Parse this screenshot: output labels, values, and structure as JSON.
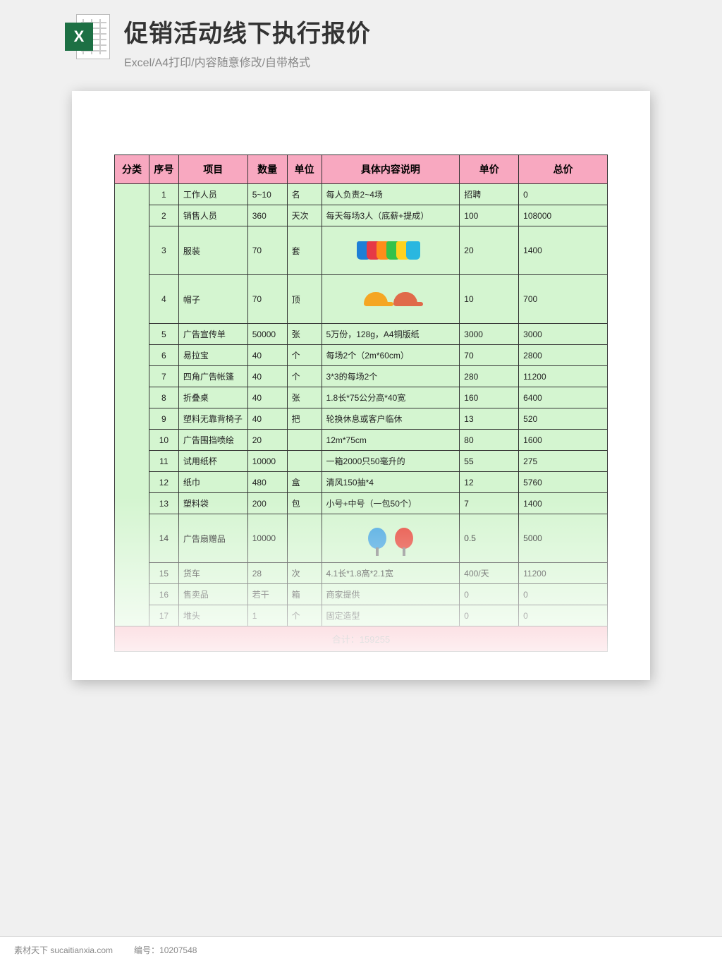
{
  "header": {
    "icon_letter": "X",
    "title": "促销活动线下执行报价",
    "subtitle": "Excel/A4打印/内容随意修改/自带格式"
  },
  "table": {
    "columns": [
      "分类",
      "序号",
      "项目",
      "数量",
      "单位",
      "具体内容说明",
      "单价",
      "总价"
    ],
    "col_widths_pct": [
      7,
      6,
      14,
      8,
      7,
      28,
      12,
      18
    ],
    "header_bg": "#f8a8c0",
    "body_bg": "#d4f5d0",
    "border_color": "#333333",
    "rows": [
      {
        "seq": "1",
        "item": "工作人员",
        "qty": "5~10",
        "unit": "名",
        "desc": "每人负责2~4场",
        "price": "招聘",
        "total": "0",
        "tall": false
      },
      {
        "seq": "2",
        "item": "销售人员",
        "qty": "360",
        "unit": "天次",
        "desc": "每天每场3人（底薪+提成）",
        "price": "100",
        "total": "108000",
        "tall": false
      },
      {
        "seq": "3",
        "item": "服装",
        "qty": "70",
        "unit": "套",
        "desc": "",
        "price": "20",
        "total": "1400",
        "tall": true,
        "illus": "shirts"
      },
      {
        "seq": "4",
        "item": "帽子",
        "qty": "70",
        "unit": "顶",
        "desc": "",
        "price": "10",
        "total": "700",
        "tall": true,
        "illus": "caps"
      },
      {
        "seq": "5",
        "item": "广告宣传单",
        "qty": "50000",
        "unit": "张",
        "desc": "5万份，128g，A4铜版纸",
        "price": "3000",
        "total": "3000",
        "tall": false
      },
      {
        "seq": "6",
        "item": "易拉宝",
        "qty": "40",
        "unit": "个",
        "desc": "每场2个（2m*60cm）",
        "price": "70",
        "total": "2800",
        "tall": false
      },
      {
        "seq": "7",
        "item": "四角广告帐篷",
        "qty": "40",
        "unit": "个",
        "desc": "3*3的每场2个",
        "price": "280",
        "total": "11200",
        "tall": false
      },
      {
        "seq": "8",
        "item": "折叠桌",
        "qty": "40",
        "unit": "张",
        "desc": "1.8长*75公分高*40宽",
        "price": "160",
        "total": "6400",
        "tall": false
      },
      {
        "seq": "9",
        "item": "塑料无靠背椅子",
        "qty": "40",
        "unit": "把",
        "desc": "轮换休息或客户临休",
        "price": "13",
        "total": "520",
        "tall": false
      },
      {
        "seq": "10",
        "item": "广告围挡喷绘",
        "qty": "20",
        "unit": "",
        "desc": "12m*75cm",
        "price": "80",
        "total": "1600",
        "tall": false
      },
      {
        "seq": "11",
        "item": "试用纸杯",
        "qty": "10000",
        "unit": "",
        "desc": "一箱2000只50毫升的",
        "price": "55",
        "total": "275",
        "tall": false
      },
      {
        "seq": "12",
        "item": "纸巾",
        "qty": "480",
        "unit": "盒",
        "desc": "清风150抽*4",
        "price": "12",
        "total": "5760",
        "tall": false
      },
      {
        "seq": "13",
        "item": "塑料袋",
        "qty": "200",
        "unit": "包",
        "desc": "小号+中号（一包50个）",
        "price": "7",
        "total": "1400",
        "tall": false
      },
      {
        "seq": "14",
        "item": "广告扇赠品",
        "qty": "10000",
        "unit": "",
        "desc": "",
        "price": "0.5",
        "total": "5000",
        "tall": true,
        "illus": "fans"
      },
      {
        "seq": "15",
        "item": "货车",
        "qty": "28",
        "unit": "次",
        "desc": "4.1长*1.8高*2.1宽",
        "price": "400/天",
        "total": "11200",
        "tall": false
      },
      {
        "seq": "16",
        "item": "售卖品",
        "qty": "若干",
        "unit": "箱",
        "desc": "商家提供",
        "price": "0",
        "total": "0",
        "tall": false
      },
      {
        "seq": "17",
        "item": "堆头",
        "qty": "1",
        "unit": "个",
        "desc": "固定造型",
        "price": "0",
        "total": "0",
        "tall": false
      }
    ],
    "total_label": "合计：",
    "total_value": "159255"
  },
  "illus_colors": {
    "shirts": [
      "#1e7fd6",
      "#e63946",
      "#ff8c1a",
      "#35c24a",
      "#ffd21f",
      "#2ab7e0"
    ],
    "caps": [
      "#f5a623",
      "#e06a4a"
    ],
    "fans": [
      "#4aa8e0",
      "#e64a3c"
    ]
  },
  "footer": {
    "site_label": "素材天下 sucaitianxia.com",
    "id_label": "编号：",
    "id_value": "10207548"
  }
}
